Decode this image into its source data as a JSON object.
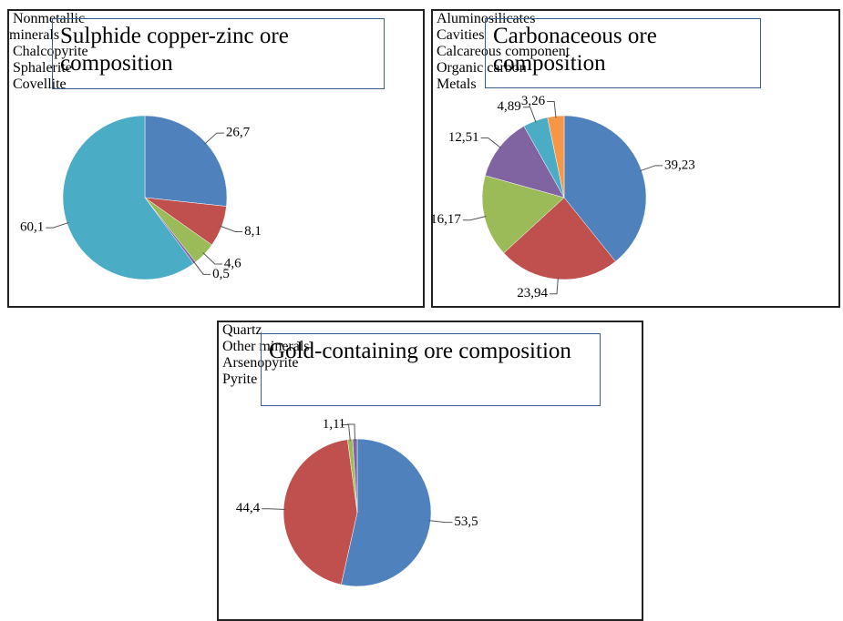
{
  "chart_data": [
    {
      "type": "pie",
      "title": "Sulphide copper-zinc ore composition",
      "categories": [
        "Nonmetallic minerals",
        "Chalcopyrite",
        "Sphalerite",
        "Covellite",
        null
      ],
      "values": [
        26.7,
        8.1,
        4.6,
        0.5,
        60.1
      ],
      "value_labels": [
        "26,7",
        "8,1",
        "4,6",
        "0,5",
        "60,1"
      ],
      "colors": [
        "#4f81bd",
        "#c0504d",
        "#9bbb59",
        "#8064a2",
        "#4bacc6"
      ]
    },
    {
      "type": "pie",
      "title": "Carbonaceous ore composition",
      "categories": [
        "Aluminosilicates",
        "Cavities",
        "Calcareous component",
        "Organic carbon",
        "Metals",
        null
      ],
      "values": [
        39.23,
        23.94,
        16.17,
        12.51,
        4.89,
        3.26
      ],
      "value_labels": [
        "39,23",
        "23,94",
        "16,17",
        "12,51",
        "4,89",
        "3,26"
      ],
      "colors": [
        "#4f81bd",
        "#c0504d",
        "#9bbb59",
        "#8064a2",
        "#4bacc6",
        "#f79646"
      ]
    },
    {
      "type": "pie",
      "title": "Gold-containing ore composition",
      "categories": [
        "Quartz",
        "Other minerals",
        "Arsenopyrite",
        "Pyrite"
      ],
      "values": [
        53.5,
        44.4,
        1.1,
        1
      ],
      "value_labels": [
        "53,5",
        "44,4",
        "1,1",
        "1"
      ],
      "colors": [
        "#4f81bd",
        "#c0504d",
        "#9bbb59",
        "#8064a2"
      ]
    }
  ]
}
